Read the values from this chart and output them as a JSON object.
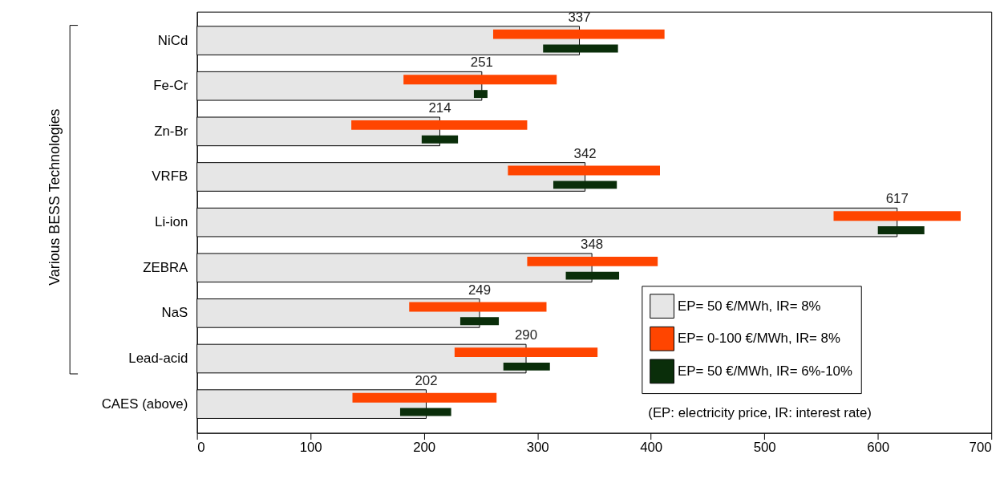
{
  "chart_data": {
    "type": "bar",
    "orientation": "horizontal",
    "categories": [
      "NiCd",
      "Fe-Cr",
      "Zn-Br",
      "VRFB",
      "Li-ion",
      "ZEBRA",
      "NaS",
      "Lead-acid",
      "CAES (above)"
    ],
    "series": [
      {
        "name": "EP= 50 €/MWh, IR= 8%",
        "color": "#e6e6e6",
        "values": [
          337,
          251,
          214,
          342,
          617,
          348,
          249,
          290,
          202
        ],
        "value_labels": [
          "337",
          "251",
          "214",
          "342",
          "617",
          "348",
          "249",
          "290",
          "202"
        ]
      },
      {
        "name": "EP= 0-100 €/MWh, IR= 8%",
        "color": "#ff4500",
        "base": [
          261,
          182,
          136,
          274,
          561,
          291,
          187,
          227,
          137
        ],
        "values": [
          151,
          135,
          155,
          134,
          112,
          115,
          121,
          126,
          127
        ]
      },
      {
        "name": "EP= 50 €/MWh, IR= 6%-10%",
        "color": "#0a2e0a",
        "base": [
          305,
          244,
          198,
          314,
          600,
          325,
          232,
          270,
          179
        ],
        "values": [
          66,
          12,
          32,
          56,
          41,
          47,
          34,
          41,
          45
        ]
      }
    ],
    "xlim": [
      0,
      700
    ],
    "xticks": [
      0,
      100,
      200,
      300,
      400,
      500,
      600,
      700
    ],
    "grid": false,
    "legend": "bottom right",
    "annotations": [
      "Various BESS Technologies",
      "(EP: electricity price, IR: interest rate)"
    ]
  }
}
